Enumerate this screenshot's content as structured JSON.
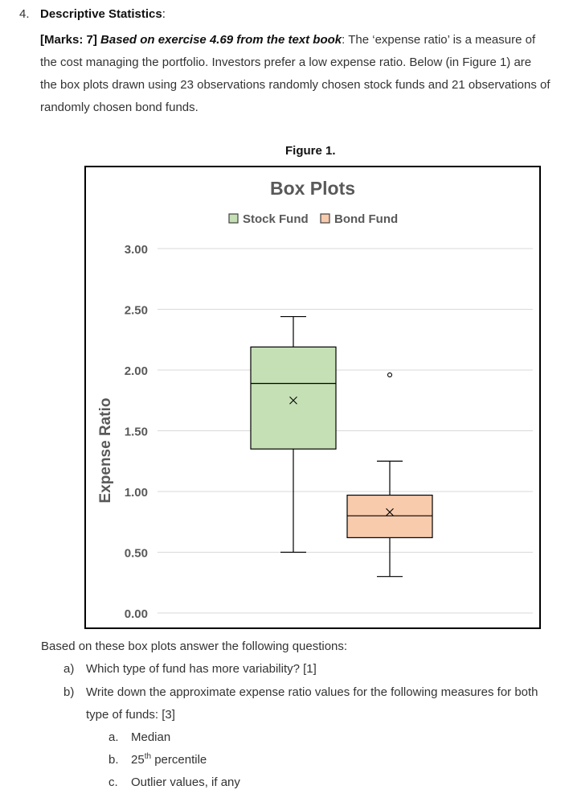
{
  "question": {
    "number": "4.",
    "title": "Descriptive Statistics",
    "title_colon": ":",
    "marks": "[Marks: 7]",
    "source": "Based on exercise 4.69 from the text book",
    "intro_lines": [
      ": The ‘expense ratio’ is a measure of",
      "the cost managing the portfolio. Investors prefer a low expense ratio. Below (in Figure 1) are",
      "the box plots drawn using 23 observations randomly chosen stock funds and 21 observations of",
      "randomly chosen bond funds."
    ]
  },
  "figure_caption": "Figure 1.",
  "chart_data": {
    "type": "boxplot",
    "title": "Box Plots",
    "ylabel": "Expense Ratio",
    "xlabel": "",
    "ylim": [
      0,
      3
    ],
    "yticks": [
      0,
      0.5,
      1,
      1.5,
      2,
      2.5,
      3
    ],
    "ytick_labels": [
      "0.00",
      "0.50",
      "1.00",
      "1.50",
      "2.00",
      "2.50",
      "3.00"
    ],
    "grid": true,
    "legend_position": "top-center",
    "series": [
      {
        "name": "Stock Fund",
        "fill": "#c5e0b4",
        "min": 0.5,
        "q1": 1.35,
        "median": 1.89,
        "q3": 2.19,
        "max": 2.44,
        "mean": 1.75,
        "outliers": []
      },
      {
        "name": "Bond Fund",
        "fill": "#f8cbad",
        "min": 0.3,
        "q1": 0.62,
        "median": 0.8,
        "q3": 0.97,
        "max": 1.25,
        "mean": 0.83,
        "outliers": [
          1.96
        ]
      }
    ]
  },
  "questions": {
    "intro": "Based on these box plots answer the following questions:",
    "a_label": "a)",
    "a_text": "Which type of fund has more variability? [1]",
    "b_label": "b)",
    "b_text_line1": "Write down the approximate expense ratio values for the following measures for both",
    "b_text_line2": "type of funds: [3]",
    "sub_items": [
      {
        "label": "a.",
        "text": "Median"
      },
      {
        "label": "b.",
        "text": "25",
        "sup": "th",
        "text_after": " percentile"
      },
      {
        "label": "c.",
        "text": "Outlier values, if any"
      }
    ]
  }
}
